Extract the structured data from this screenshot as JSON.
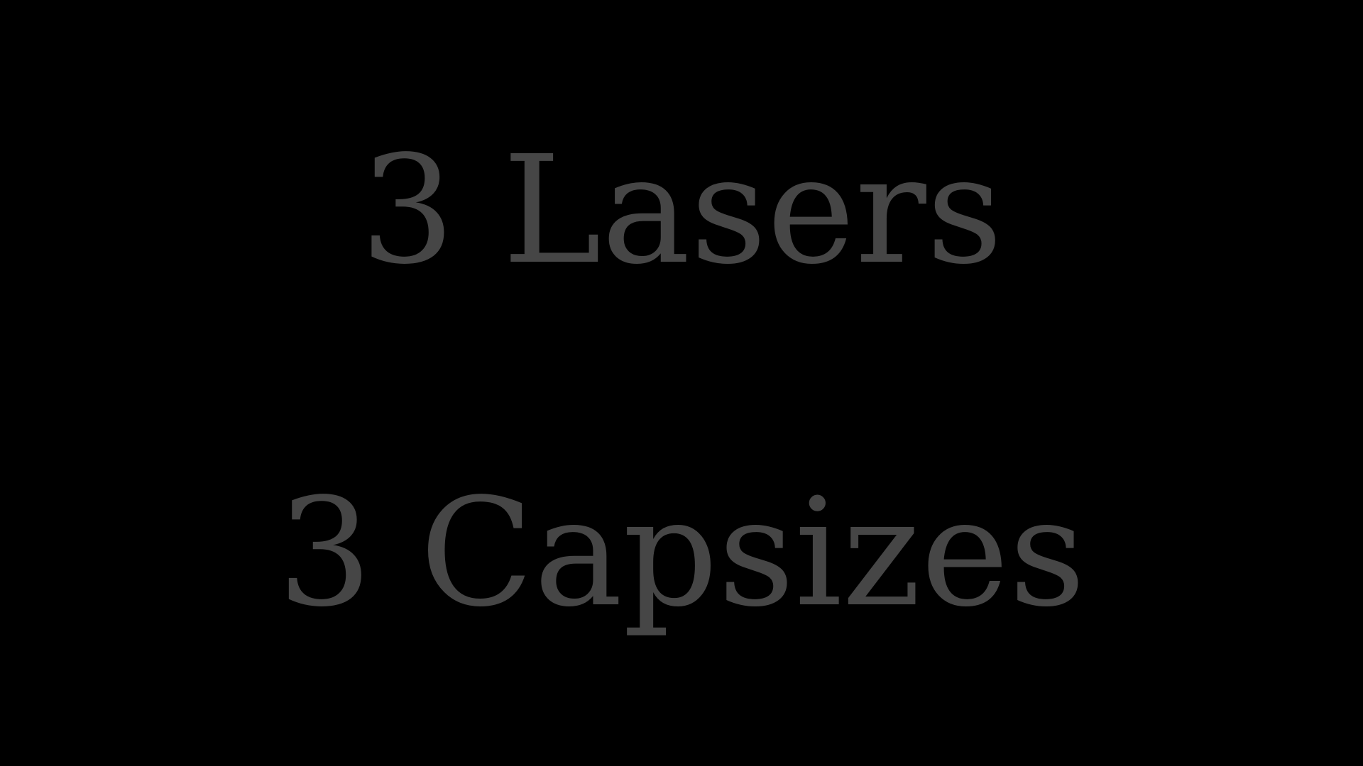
{
  "slide": {
    "lines": [
      "3 Lasers",
      "3 Capsizes"
    ],
    "background_color": "#000000",
    "text_color": "#464646"
  }
}
